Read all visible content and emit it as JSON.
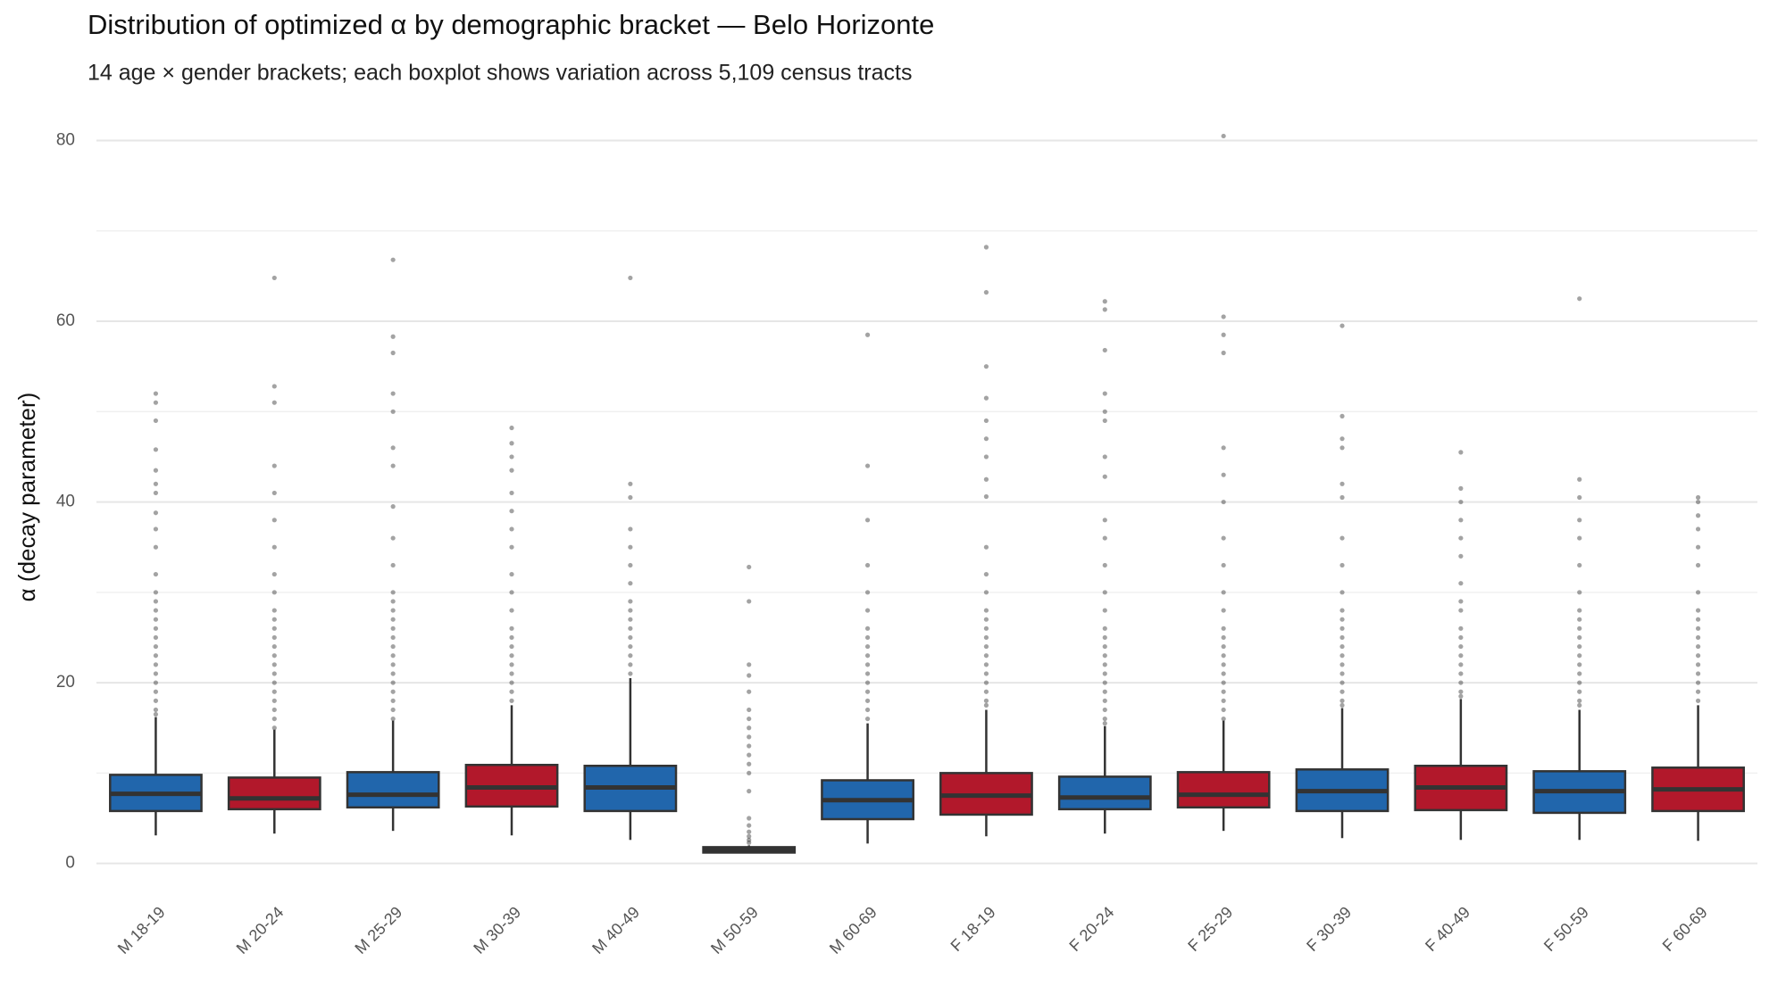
{
  "chart_data": {
    "type": "boxplot",
    "title": "Distribution of optimized α by demographic bracket — Belo Horizonte",
    "subtitle": "14 age × gender brackets; each boxplot shows variation across 5,109 census tracts",
    "y_label": "α (decay parameter)",
    "categories": [
      "M 18-19",
      "M 20-24",
      "M 25-29",
      "M 30-39",
      "M 40-49",
      "M 50-59",
      "M 60-69",
      "F 18-19",
      "F 20-24",
      "F 25-29",
      "F 30-39",
      "F 40-49",
      "F 50-59",
      "F 60-69"
    ],
    "colors": [
      "#2166ac",
      "#b2182b",
      "#2166ac",
      "#b2182b",
      "#2166ac",
      "#2166ac",
      "#2166ac",
      "#b2182b",
      "#2166ac",
      "#b2182b",
      "#2166ac",
      "#b2182b",
      "#2166ac",
      "#b2182b"
    ],
    "whisker_low": [
      3.1,
      3.3,
      3.6,
      3.1,
      2.6,
      1.1,
      2.2,
      3.0,
      3.3,
      3.6,
      2.8,
      2.6,
      2.6,
      2.5
    ],
    "q1": [
      5.8,
      6.0,
      6.2,
      6.3,
      5.8,
      1.2,
      4.9,
      5.4,
      6.0,
      6.2,
      5.8,
      5.9,
      5.6,
      5.8
    ],
    "median": [
      7.7,
      7.2,
      7.6,
      8.4,
      8.4,
      1.5,
      7.0,
      7.5,
      7.3,
      7.6,
      8.0,
      8.4,
      8.0,
      8.2
    ],
    "q3": [
      9.8,
      9.5,
      10.1,
      10.9,
      10.8,
      1.8,
      9.2,
      10.0,
      9.6,
      10.1,
      10.4,
      10.8,
      10.2,
      10.6
    ],
    "whisker_high": [
      16.2,
      14.8,
      15.8,
      17.5,
      20.5,
      2.0,
      15.5,
      17.0,
      15.2,
      15.8,
      17.2,
      18.2,
      17.0,
      17.5
    ],
    "outliers": [
      [
        16.5,
        17,
        18,
        19,
        20,
        21,
        22,
        23,
        24,
        25,
        26,
        27,
        28,
        29,
        30,
        32,
        35,
        37,
        38.8,
        41,
        42,
        43.5,
        45.8,
        49,
        51,
        52
      ],
      [
        15,
        16,
        17,
        18,
        19,
        20,
        21,
        22,
        23,
        24,
        25,
        26,
        27,
        28,
        30,
        32,
        35,
        38,
        41,
        44,
        51,
        52.8,
        64.8
      ],
      [
        16,
        17,
        18,
        19,
        20,
        21,
        22,
        23,
        24,
        25,
        26,
        27,
        28,
        29,
        30,
        33,
        36,
        39.5,
        44,
        46,
        50,
        52,
        56.5,
        58.3,
        66.8
      ],
      [
        18,
        19,
        20,
        21,
        22,
        23,
        24,
        25,
        26,
        28,
        30,
        32,
        35,
        37,
        39,
        41,
        43.5,
        45,
        46.5,
        48.2
      ],
      [
        21,
        22,
        23,
        24,
        25,
        26,
        27,
        28,
        29,
        31,
        33,
        35,
        37,
        40.5,
        42,
        64.8
      ],
      [
        2.3,
        2.6,
        3,
        3.5,
        4.2,
        5,
        8,
        10,
        11,
        12,
        13,
        14,
        15,
        16,
        17,
        19,
        20.8,
        22,
        29,
        32.8
      ],
      [
        16,
        17,
        18,
        19,
        20,
        21,
        22,
        23,
        24,
        25,
        26,
        28,
        30,
        33,
        38,
        44,
        58.5
      ],
      [
        17.5,
        18,
        19,
        20,
        21,
        22,
        23,
        24,
        25,
        26,
        27,
        28,
        30,
        32,
        35,
        40.6,
        42.5,
        45,
        47,
        49,
        51.5,
        55,
        63.2,
        68.2
      ],
      [
        15.5,
        16,
        17,
        18,
        19,
        20,
        21,
        22,
        23,
        24,
        25,
        26,
        28,
        30,
        33,
        36,
        38,
        42.8,
        45,
        49,
        50,
        52,
        56.8,
        61.3,
        62.2
      ],
      [
        16,
        17,
        18,
        19,
        20,
        21,
        22,
        23,
        24,
        25,
        26,
        28,
        30,
        33,
        36,
        40,
        43,
        46,
        56.5,
        58.5,
        60.5,
        80.5
      ],
      [
        17.5,
        18,
        19,
        20,
        21,
        22,
        23,
        24,
        25,
        26,
        27,
        28,
        30,
        33,
        36,
        40.5,
        42,
        46,
        47,
        49.5,
        59.5
      ],
      [
        18.5,
        19,
        20,
        21,
        22,
        23,
        24,
        25,
        26,
        28,
        29,
        31,
        34,
        36,
        38,
        40,
        41.5,
        45.5
      ],
      [
        17.5,
        18,
        19,
        20,
        21,
        22,
        23,
        24,
        25,
        26,
        27,
        28,
        30,
        33,
        36,
        38,
        40.5,
        42.5,
        62.5
      ],
      [
        18,
        19,
        20,
        21,
        22,
        23,
        24,
        25,
        26,
        27,
        28,
        30,
        33,
        35,
        37,
        38.5,
        40,
        40.5
      ]
    ],
    "ylim": [
      -3,
      84
    ],
    "yticks": [
      0,
      20,
      40,
      60,
      80
    ],
    "minor_grid": [
      10,
      30,
      50,
      70
    ],
    "grid": true
  }
}
